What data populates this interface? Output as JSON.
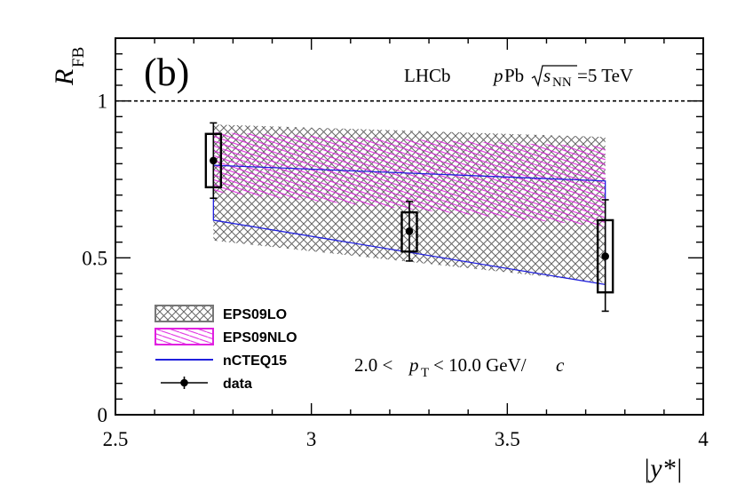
{
  "chart_data": {
    "type": "scatter",
    "panel_label": "(b)",
    "experiment": "LHCb",
    "system_p": "p",
    "system_pb": "Pb",
    "energy_sym": "s",
    "energy_sub": "NN",
    "energy_val": "=5 TeV",
    "ylabel_main": "R",
    "ylabel_sub": "FB",
    "xlabel": "|y*|",
    "x_ticks": [
      "2.5",
      "3",
      "3.5",
      "4"
    ],
    "x_tick_values": [
      2.5,
      3.0,
      3.5,
      4.0
    ],
    "y_ticks": [
      "0",
      "0.5",
      "1"
    ],
    "y_tick_values": [
      0,
      0.5,
      1.0
    ],
    "xlim": [
      2.5,
      4.0
    ],
    "ylim": [
      0,
      1.2
    ],
    "reference_line_y": 1.0,
    "cut_lo": "2.0 <",
    "cut_var": "p",
    "cut_sub": "T",
    "cut_hi": "< 10.0 GeV/",
    "cut_unit": "c",
    "legend": [
      {
        "key": "eps09lo",
        "label": "EPS09LO"
      },
      {
        "key": "eps09nlo",
        "label": "EPS09NLO"
      },
      {
        "key": "ncteq15",
        "label": "nCTEQ15"
      },
      {
        "key": "data",
        "label": "data"
      }
    ],
    "series": [
      {
        "name": "EPS09LO",
        "kind": "band",
        "color": "#555555",
        "x": [
          2.75,
          3.75
        ],
        "lower": [
          0.555,
          0.42
        ],
        "upper": [
          0.925,
          0.885
        ]
      },
      {
        "name": "EPS09NLO",
        "kind": "band",
        "color": "#e020e0",
        "x": [
          2.75,
          3.75
        ],
        "lower": [
          0.71,
          0.6
        ],
        "upper": [
          0.9,
          0.855
        ]
      },
      {
        "name": "nCTEQ15",
        "kind": "band",
        "color": "#2020dd",
        "x": [
          2.75,
          3.75
        ],
        "lower": [
          0.62,
          0.415
        ],
        "upper": [
          0.795,
          0.745
        ]
      },
      {
        "name": "data",
        "kind": "points",
        "color": "#000000",
        "x": [
          2.75,
          3.25,
          3.75
        ],
        "y": [
          0.81,
          0.585,
          0.505
        ],
        "stat_lo": [
          0.69,
          0.49,
          0.33
        ],
        "stat_hi": [
          0.93,
          0.68,
          0.685
        ],
        "syst_lo": [
          0.725,
          0.52,
          0.39
        ],
        "syst_hi": [
          0.895,
          0.645,
          0.62
        ]
      }
    ]
  }
}
